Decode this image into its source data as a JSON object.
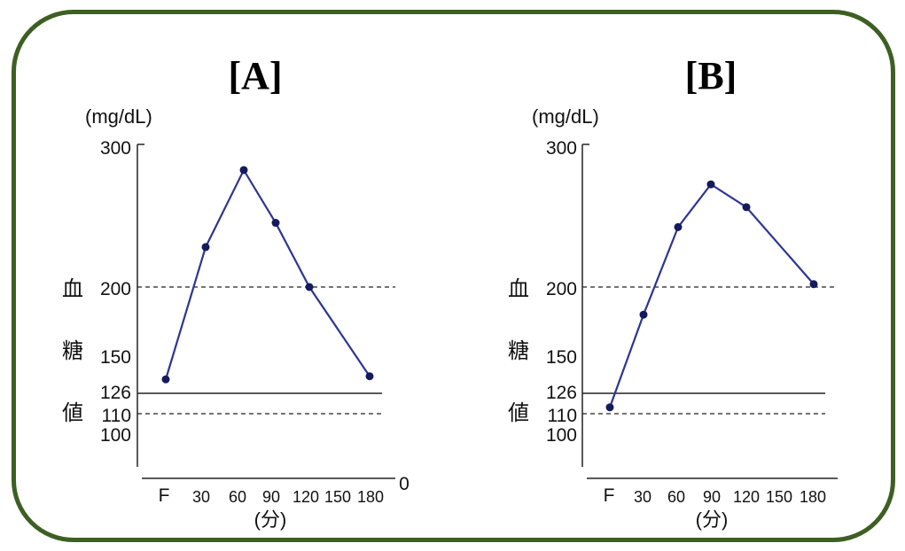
{
  "chart_data": [
    {
      "type": "line",
      "title": "[A]",
      "unit_label": "(mg/dL)",
      "ylabel_chars": [
        "血",
        "糖",
        "値"
      ],
      "xlabel": "(分)",
      "y_ticks": [
        "300",
        "200",
        "150",
        "126",
        "110",
        "100"
      ],
      "x_ticks": [
        "F",
        "30",
        "60",
        "90",
        "120",
        "150",
        "180"
      ],
      "extra_x_label": "0",
      "reference_lines": [
        {
          "value": 200,
          "style": "dashed"
        },
        {
          "value": 126,
          "style": "solid"
        },
        {
          "value": 110,
          "style": "dashed"
        }
      ],
      "series": [
        {
          "name": "血糖値",
          "x": [
            0,
            30,
            60,
            90,
            120,
            180
          ],
          "values": [
            135,
            228,
            282,
            245,
            200,
            137
          ],
          "color": "#2e3592"
        }
      ]
    },
    {
      "type": "line",
      "title": "[B]",
      "unit_label": "(mg/dL)",
      "ylabel_chars": [
        "血",
        "糖",
        "値"
      ],
      "xlabel": "(分)",
      "y_ticks": [
        "300",
        "200",
        "150",
        "126",
        "110",
        "100"
      ],
      "x_ticks": [
        "F",
        "30",
        "60",
        "90",
        "120",
        "150",
        "180"
      ],
      "reference_lines": [
        {
          "value": 200,
          "style": "dashed"
        },
        {
          "value": 126,
          "style": "solid"
        },
        {
          "value": 110,
          "style": "dashed"
        }
      ],
      "series": [
        {
          "name": "血糖値",
          "x": [
            0,
            30,
            60,
            90,
            120,
            180
          ],
          "values": [
            115,
            180,
            242,
            272,
            256,
            202
          ],
          "color": "#2e3592"
        }
      ]
    }
  ]
}
